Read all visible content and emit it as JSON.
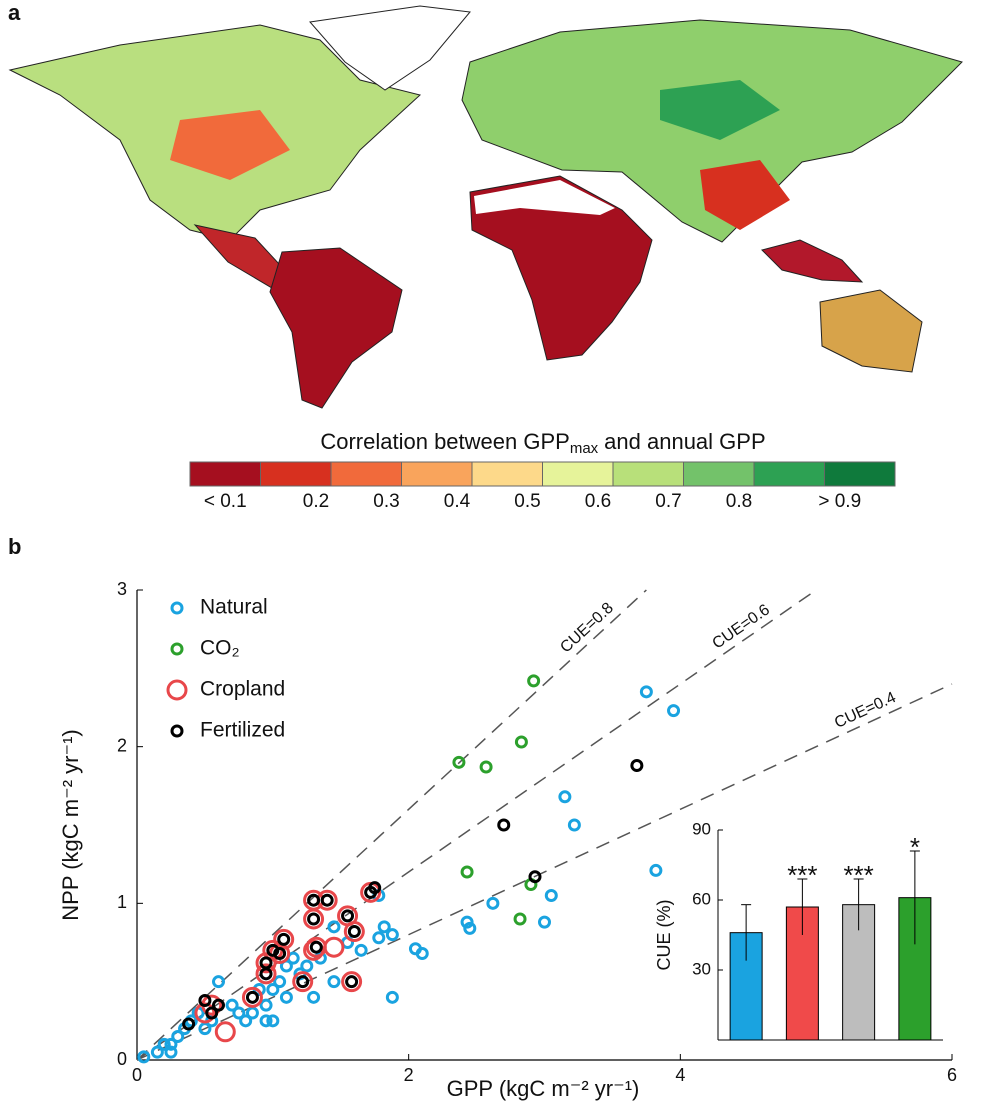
{
  "chart_data": [
    {
      "type": "map",
      "panel_label": "a",
      "colorbar": {
        "title": "Correlation between GPP",
        "title_sub": "max",
        "title_end": "and annual GPP",
        "colors": [
          "#a50f1f",
          "#d7301f",
          "#f16a3b",
          "#f9a45c",
          "#fdd98a",
          "#e6f39a",
          "#b8e07a",
          "#73c26a",
          "#2da153",
          "#0f7a3c"
        ],
        "labels": [
          "< 0.1",
          "0.2",
          "0.3",
          "0.4",
          "0.5",
          "0.6",
          "0.7",
          "0.8",
          "> 0.9"
        ]
      }
    },
    {
      "type": "scatter",
      "panel_label": "b",
      "xlabel": "GPP (kgC m⁻² yr⁻¹)",
      "ylabel": "NPP (kgC m⁻² yr⁻¹)",
      "xlim": [
        0,
        6
      ],
      "xticks": [
        0,
        2,
        4,
        6
      ],
      "ylim": [
        0,
        3
      ],
      "yticks": [
        0,
        1,
        2,
        3
      ],
      "series": [
        {
          "name": "Natural",
          "color": "#1aa3e0",
          "marker": "small",
          "x": [
            3.75,
            3.95,
            3.15,
            3.22,
            3.82,
            2.43,
            2.45,
            2.62,
            3.05,
            3.0,
            1.88,
            2.05,
            2.1,
            1.78,
            1.82,
            1.88,
            1.78,
            1.65,
            1.55,
            1.45,
            1.45,
            1.35,
            1.25,
            1.15,
            1.1,
            1.2,
            1.05,
            1.0,
            0.9,
            0.95,
            0.85,
            0.8,
            0.75,
            0.7,
            0.6,
            0.55,
            0.5,
            0.45,
            0.4,
            0.35,
            0.3,
            0.25,
            0.2,
            0.25,
            0.15,
            0.05,
            1.3,
            1.1,
            1.0,
            0.95
          ],
          "values": [
            2.35,
            2.23,
            1.68,
            1.5,
            1.21,
            0.88,
            0.84,
            1.0,
            1.05,
            0.88,
            0.4,
            0.71,
            0.68,
            1.05,
            0.85,
            0.8,
            0.78,
            0.7,
            0.75,
            0.85,
            0.5,
            0.65,
            0.6,
            0.65,
            0.6,
            0.55,
            0.5,
            0.45,
            0.45,
            0.35,
            0.3,
            0.25,
            0.3,
            0.35,
            0.5,
            0.25,
            0.2,
            0.3,
            0.25,
            0.2,
            0.15,
            0.1,
            0.1,
            0.05,
            0.05,
            0.02,
            0.4,
            0.4,
            0.25,
            0.25
          ]
        },
        {
          "name": "CO₂",
          "color": "#2ca02c",
          "marker": "small",
          "x": [
            2.92,
            2.37,
            2.57,
            2.83,
            2.43,
            2.9,
            2.82
          ],
          "values": [
            2.42,
            1.9,
            1.87,
            2.03,
            1.2,
            1.12,
            0.9
          ]
        },
        {
          "name": "Cropland",
          "color": "#e8474a",
          "marker": "large",
          "x": [
            0.5,
            0.55,
            0.65,
            0.85,
            0.95,
            0.95,
            1.0,
            1.05,
            1.08,
            1.22,
            1.3,
            1.3,
            1.4,
            1.32,
            1.45,
            1.55,
            1.6,
            1.58,
            1.72,
            1.3
          ],
          "values": [
            0.3,
            0.35,
            0.18,
            0.4,
            0.55,
            0.62,
            0.7,
            0.68,
            0.77,
            0.5,
            0.9,
            1.02,
            1.02,
            0.72,
            0.72,
            0.92,
            0.82,
            0.5,
            1.07,
            0.7
          ]
        },
        {
          "name": "Fertilized",
          "color": "#000000",
          "marker": "small",
          "x": [
            0.38,
            0.5,
            0.55,
            0.6,
            0.85,
            0.95,
            0.95,
            1.0,
            1.05,
            1.08,
            1.22,
            1.3,
            1.3,
            1.4,
            1.32,
            1.55,
            1.6,
            1.58,
            1.72,
            1.75,
            2.7,
            2.93,
            3.68
          ],
          "values": [
            0.23,
            0.38,
            0.3,
            0.35,
            0.4,
            0.55,
            0.62,
            0.7,
            0.68,
            0.77,
            0.5,
            0.9,
            1.02,
            1.02,
            0.72,
            0.92,
            0.82,
            0.5,
            1.07,
            1.1,
            1.5,
            1.17,
            1.88
          ]
        }
      ],
      "reference_lines": [
        {
          "slope": 0.8,
          "label": "CUE=0.8"
        },
        {
          "slope": 0.6,
          "label": "CUE=0.6"
        },
        {
          "slope": 0.4,
          "label": "CUE=0.4"
        }
      ],
      "inset": {
        "type": "bar",
        "ylabel": "CUE (%)",
        "ylim": [
          0,
          90
        ],
        "yticks": [
          30,
          60,
          90
        ],
        "values": [
          46,
          57,
          58,
          61
        ],
        "errors": [
          12,
          12,
          11,
          20
        ],
        "colors": [
          "#1aa3e0",
          "#f04a4a",
          "#bdbdbd",
          "#2ca02c"
        ],
        "annotations": [
          null,
          "***",
          "***",
          "*"
        ]
      }
    }
  ]
}
